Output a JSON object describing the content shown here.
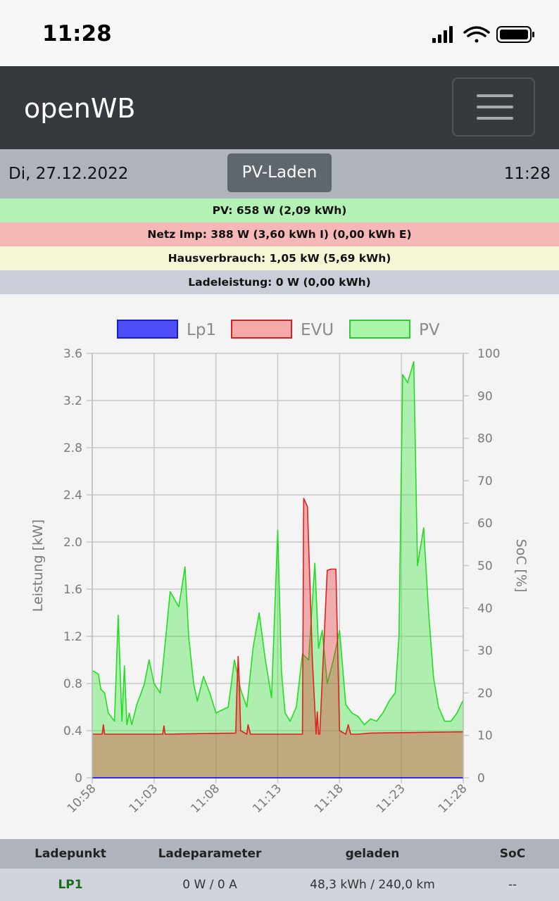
{
  "status": {
    "time": "11:28",
    "icons": [
      "cellular-signal-icon",
      "wifi-icon",
      "battery-icon"
    ]
  },
  "navbar": {
    "brand": "openWB",
    "menu_icon": "hamburger-menu-icon"
  },
  "infobar": {
    "date": "Di, 27.12.2022",
    "mode_button": "PV-Laden",
    "clock": "11:28"
  },
  "summary": {
    "pv": "PV: 658 W (2,09 kWh)",
    "evu": "Netz Imp: 388 W (3,60 kWh I) (0,00 kWh E)",
    "house": "Hausverbrauch: 1,05 kW (5,69 kWh)",
    "charge": "Ladeleistung: 0 W (0,00 kWh)"
  },
  "chart_data": {
    "type": "area",
    "x_ticks": [
      "10:58",
      "11:03",
      "11:08",
      "11:13",
      "11:18",
      "11:23",
      "11:28"
    ],
    "x_range_minutes": [
      0,
      30
    ],
    "ylabel": "Leistung [kW]",
    "ylim": [
      0,
      3.6
    ],
    "y_ticks": [
      "0",
      "0.4",
      "0.8",
      "1.2",
      "1.6",
      "2.0",
      "2.4",
      "2.8",
      "3.2",
      "3.6"
    ],
    "y2label": "SoC [%]",
    "y2lim": [
      0,
      100
    ],
    "y2_ticks": [
      "0",
      "10",
      "20",
      "30",
      "40",
      "50",
      "60",
      "70",
      "80",
      "90",
      "100"
    ],
    "legend_position": "top",
    "grid": true,
    "colors": {
      "lp1": "#0000ff",
      "evu": "#e02020",
      "pv": "#22dd22"
    },
    "series": [
      {
        "name": "Lp1",
        "x": [
          0,
          30
        ],
        "values": [
          0,
          0
        ]
      },
      {
        "name": "EVU",
        "x": [
          0,
          0.8,
          0.9,
          1.0,
          1.2,
          5.7,
          5.8,
          5.9,
          6.0,
          11.6,
          11.7,
          11.8,
          11.9,
          12.0,
          12.5,
          12.6,
          12.8,
          17.0,
          17.1,
          17.4,
          17.8,
          18.1,
          18.2,
          18.3,
          18.4,
          19.0,
          19.3,
          19.7,
          20.0,
          20.5,
          20.7,
          20.9,
          21.0,
          21.5,
          22.5,
          30.0
        ],
        "values": [
          0.37,
          0.37,
          0.45,
          0.37,
          0.37,
          0.37,
          0.44,
          0.37,
          0.37,
          0.38,
          0.75,
          1.03,
          0.8,
          0.4,
          0.37,
          0.45,
          0.37,
          0.37,
          2.37,
          2.3,
          1.0,
          0.37,
          0.56,
          0.37,
          0.37,
          1.76,
          1.77,
          1.77,
          0.4,
          0.37,
          0.45,
          0.37,
          0.37,
          0.37,
          0.38,
          0.39
        ]
      },
      {
        "name": "PV",
        "x": [
          0,
          0.5,
          0.7,
          1.0,
          1.3,
          1.8,
          2.1,
          2.4,
          2.6,
          2.8,
          3.0,
          3.2,
          3.6,
          4.2,
          4.6,
          5.0,
          5.5,
          6.0,
          6.3,
          7.0,
          7.5,
          7.8,
          8.2,
          8.5,
          9.0,
          9.5,
          10.0,
          11.0,
          11.5,
          12.0,
          12.5,
          13.0,
          13.5,
          14.0,
          14.5,
          15.0,
          15.3,
          15.6,
          16.0,
          16.5,
          17.0,
          17.5,
          18.0,
          18.3,
          18.6,
          19.0,
          19.5,
          20.0,
          20.5,
          21.0,
          21.5,
          22.0,
          22.5,
          23.0,
          23.5,
          24.0,
          24.5,
          24.8,
          25.1,
          25.5,
          26.0,
          26.3,
          26.8,
          27.2,
          27.6,
          28.0,
          28.5,
          29.0,
          29.5,
          30.0
        ],
        "values": [
          0.91,
          0.88,
          0.75,
          0.72,
          0.55,
          0.48,
          1.38,
          0.48,
          0.95,
          0.45,
          0.55,
          0.45,
          0.62,
          0.79,
          1.0,
          0.8,
          0.72,
          1.25,
          1.58,
          1.45,
          1.79,
          1.2,
          0.8,
          0.65,
          0.86,
          0.72,
          0.55,
          0.6,
          1.0,
          0.75,
          0.6,
          1.1,
          1.4,
          1.0,
          0.68,
          2.1,
          0.9,
          0.55,
          0.48,
          0.6,
          1.05,
          1.0,
          1.82,
          1.1,
          1.25,
          0.8,
          1.0,
          1.25,
          0.62,
          0.55,
          0.52,
          0.45,
          0.5,
          0.48,
          0.55,
          0.65,
          0.72,
          1.2,
          3.42,
          3.35,
          3.53,
          1.8,
          2.12,
          1.4,
          0.85,
          0.6,
          0.48,
          0.48,
          0.55,
          0.66
        ]
      }
    ]
  },
  "table": {
    "headers": [
      "Ladepunkt",
      "Ladeparameter",
      "geladen",
      "SoC"
    ],
    "rows": [
      {
        "lp": "LP1",
        "param": "0 W / 0 A",
        "charged": "48,3 kWh / 240,0 km",
        "soc": "--"
      }
    ]
  }
}
